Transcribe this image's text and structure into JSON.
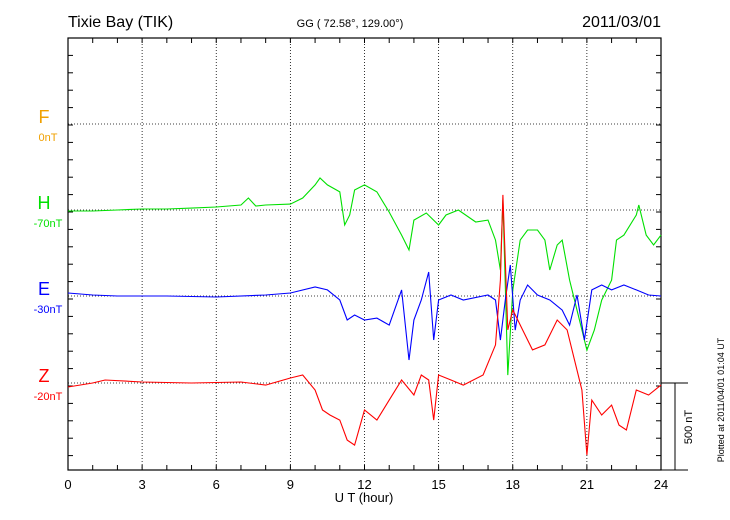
{
  "chart_data": {
    "type": "line",
    "title": "Tixie Bay (TIK)",
    "subtitle": "GG ( 72.58°, 129.00°)",
    "date": "2011/03/01",
    "xlabel": "U T (hour)",
    "xlim": [
      0,
      24
    ],
    "xticks": [
      "0",
      "3",
      "6",
      "9",
      "12",
      "15",
      "18",
      "21",
      "24"
    ],
    "grid": true,
    "scale_bar_label": "500 nT",
    "scale_bar_nT": 500,
    "footer": "Plotted at 2011/04/01 01:04 UT",
    "series": [
      {
        "name": "F",
        "baseline_label": "0nT",
        "color": "#f0a000",
        "points": []
      },
      {
        "name": "H",
        "baseline_label": "-70nT",
        "color": "#00e000",
        "points": [
          [
            0,
            -6
          ],
          [
            1,
            -6
          ],
          [
            2,
            0
          ],
          [
            3,
            6
          ],
          [
            4,
            6
          ],
          [
            5,
            11
          ],
          [
            6,
            17
          ],
          [
            7,
            29
          ],
          [
            7.3,
            69
          ],
          [
            7.6,
            23
          ],
          [
            8,
            29
          ],
          [
            9,
            34
          ],
          [
            9.5,
            69
          ],
          [
            10,
            144
          ],
          [
            10.2,
            184
          ],
          [
            10.5,
            144
          ],
          [
            11,
            104
          ],
          [
            11.2,
            -86
          ],
          [
            11.4,
            -29
          ],
          [
            11.6,
            115
          ],
          [
            12,
            144
          ],
          [
            12.5,
            104
          ],
          [
            13,
            -12
          ],
          [
            13.5,
            -144
          ],
          [
            13.8,
            -230
          ],
          [
            14,
            -58
          ],
          [
            14.5,
            -17
          ],
          [
            15,
            -86
          ],
          [
            15.3,
            -29
          ],
          [
            15.8,
            0
          ],
          [
            16.5,
            -69
          ],
          [
            17,
            -58
          ],
          [
            17.3,
            -173
          ],
          [
            17.5,
            -345
          ],
          [
            17.6,
            58
          ],
          [
            17.8,
            -949
          ],
          [
            18,
            -460
          ],
          [
            18.3,
            -173
          ],
          [
            18.6,
            -115
          ],
          [
            19,
            -115
          ],
          [
            19.3,
            -173
          ],
          [
            19.5,
            -345
          ],
          [
            19.8,
            -201
          ],
          [
            20,
            -173
          ],
          [
            20.3,
            -403
          ],
          [
            20.6,
            -575
          ],
          [
            21,
            -805
          ],
          [
            21.3,
            -690
          ],
          [
            21.6,
            -518
          ],
          [
            22,
            -403
          ],
          [
            22.2,
            -173
          ],
          [
            22.5,
            -144
          ],
          [
            23,
            -29
          ],
          [
            23.1,
            29
          ],
          [
            23.4,
            -144
          ],
          [
            23.7,
            -201
          ],
          [
            24,
            -144
          ]
        ]
      },
      {
        "name": "E",
        "baseline_label": "-30nT",
        "color": "#0000ff",
        "points": [
          [
            0,
            17
          ],
          [
            1,
            6
          ],
          [
            2,
            0
          ],
          [
            4,
            0
          ],
          [
            6,
            -6
          ],
          [
            8,
            6
          ],
          [
            9,
            17
          ],
          [
            10,
            52
          ],
          [
            10.5,
            35
          ],
          [
            11,
            -23
          ],
          [
            11.3,
            -138
          ],
          [
            11.6,
            -109
          ],
          [
            12,
            -138
          ],
          [
            12.5,
            -127
          ],
          [
            13,
            -167
          ],
          [
            13.5,
            35
          ],
          [
            13.8,
            -368
          ],
          [
            14,
            -138
          ],
          [
            14.3,
            -23
          ],
          [
            14.6,
            138
          ],
          [
            14.8,
            -253
          ],
          [
            15,
            -23
          ],
          [
            15.5,
            6
          ],
          [
            16,
            -23
          ],
          [
            17,
            6
          ],
          [
            17.3,
            -23
          ],
          [
            17.5,
            -253
          ],
          [
            17.7,
            -23
          ],
          [
            17.9,
            178
          ],
          [
            18.1,
            -196
          ],
          [
            18.3,
            -23
          ],
          [
            18.6,
            63
          ],
          [
            19,
            6
          ],
          [
            19.5,
            -23
          ],
          [
            20,
            -81
          ],
          [
            20.3,
            -167
          ],
          [
            20.6,
            6
          ],
          [
            20.9,
            -253
          ],
          [
            21.2,
            35
          ],
          [
            21.6,
            63
          ],
          [
            22,
            35
          ],
          [
            22.5,
            63
          ],
          [
            23,
            35
          ],
          [
            23.5,
            6
          ],
          [
            24,
            0
          ]
        ]
      },
      {
        "name": "Z",
        "baseline_label": "-20nT",
        "color": "#ff0000",
        "points": [
          [
            0,
            -23
          ],
          [
            1,
            0
          ],
          [
            1.5,
            17
          ],
          [
            3,
            6
          ],
          [
            5,
            0
          ],
          [
            7,
            6
          ],
          [
            8,
            -12
          ],
          [
            9,
            29
          ],
          [
            9.5,
            46
          ],
          [
            10,
            -40
          ],
          [
            10.3,
            -155
          ],
          [
            10.6,
            -184
          ],
          [
            11,
            -213
          ],
          [
            11.3,
            -328
          ],
          [
            11.6,
            -357
          ],
          [
            12,
            -155
          ],
          [
            12.5,
            -213
          ],
          [
            13,
            -98
          ],
          [
            13.5,
            17
          ],
          [
            14,
            -69
          ],
          [
            14.3,
            46
          ],
          [
            14.6,
            17
          ],
          [
            14.8,
            -213
          ],
          [
            15,
            46
          ],
          [
            15.5,
            17
          ],
          [
            16,
            -12
          ],
          [
            16.8,
            46
          ],
          [
            17.3,
            219
          ],
          [
            17.5,
            592
          ],
          [
            17.6,
            1081
          ],
          [
            17.8,
            305
          ],
          [
            18,
            420
          ],
          [
            18.4,
            305
          ],
          [
            18.8,
            190
          ],
          [
            19.3,
            219
          ],
          [
            19.8,
            362
          ],
          [
            20.2,
            305
          ],
          [
            20.5,
            132
          ],
          [
            20.8,
            -40
          ],
          [
            21,
            -414
          ],
          [
            21.2,
            -98
          ],
          [
            21.6,
            -184
          ],
          [
            22,
            -127
          ],
          [
            22.3,
            -242
          ],
          [
            22.6,
            -270
          ],
          [
            23,
            -40
          ],
          [
            23.5,
            -69
          ],
          [
            24,
            -12
          ]
        ]
      }
    ]
  }
}
